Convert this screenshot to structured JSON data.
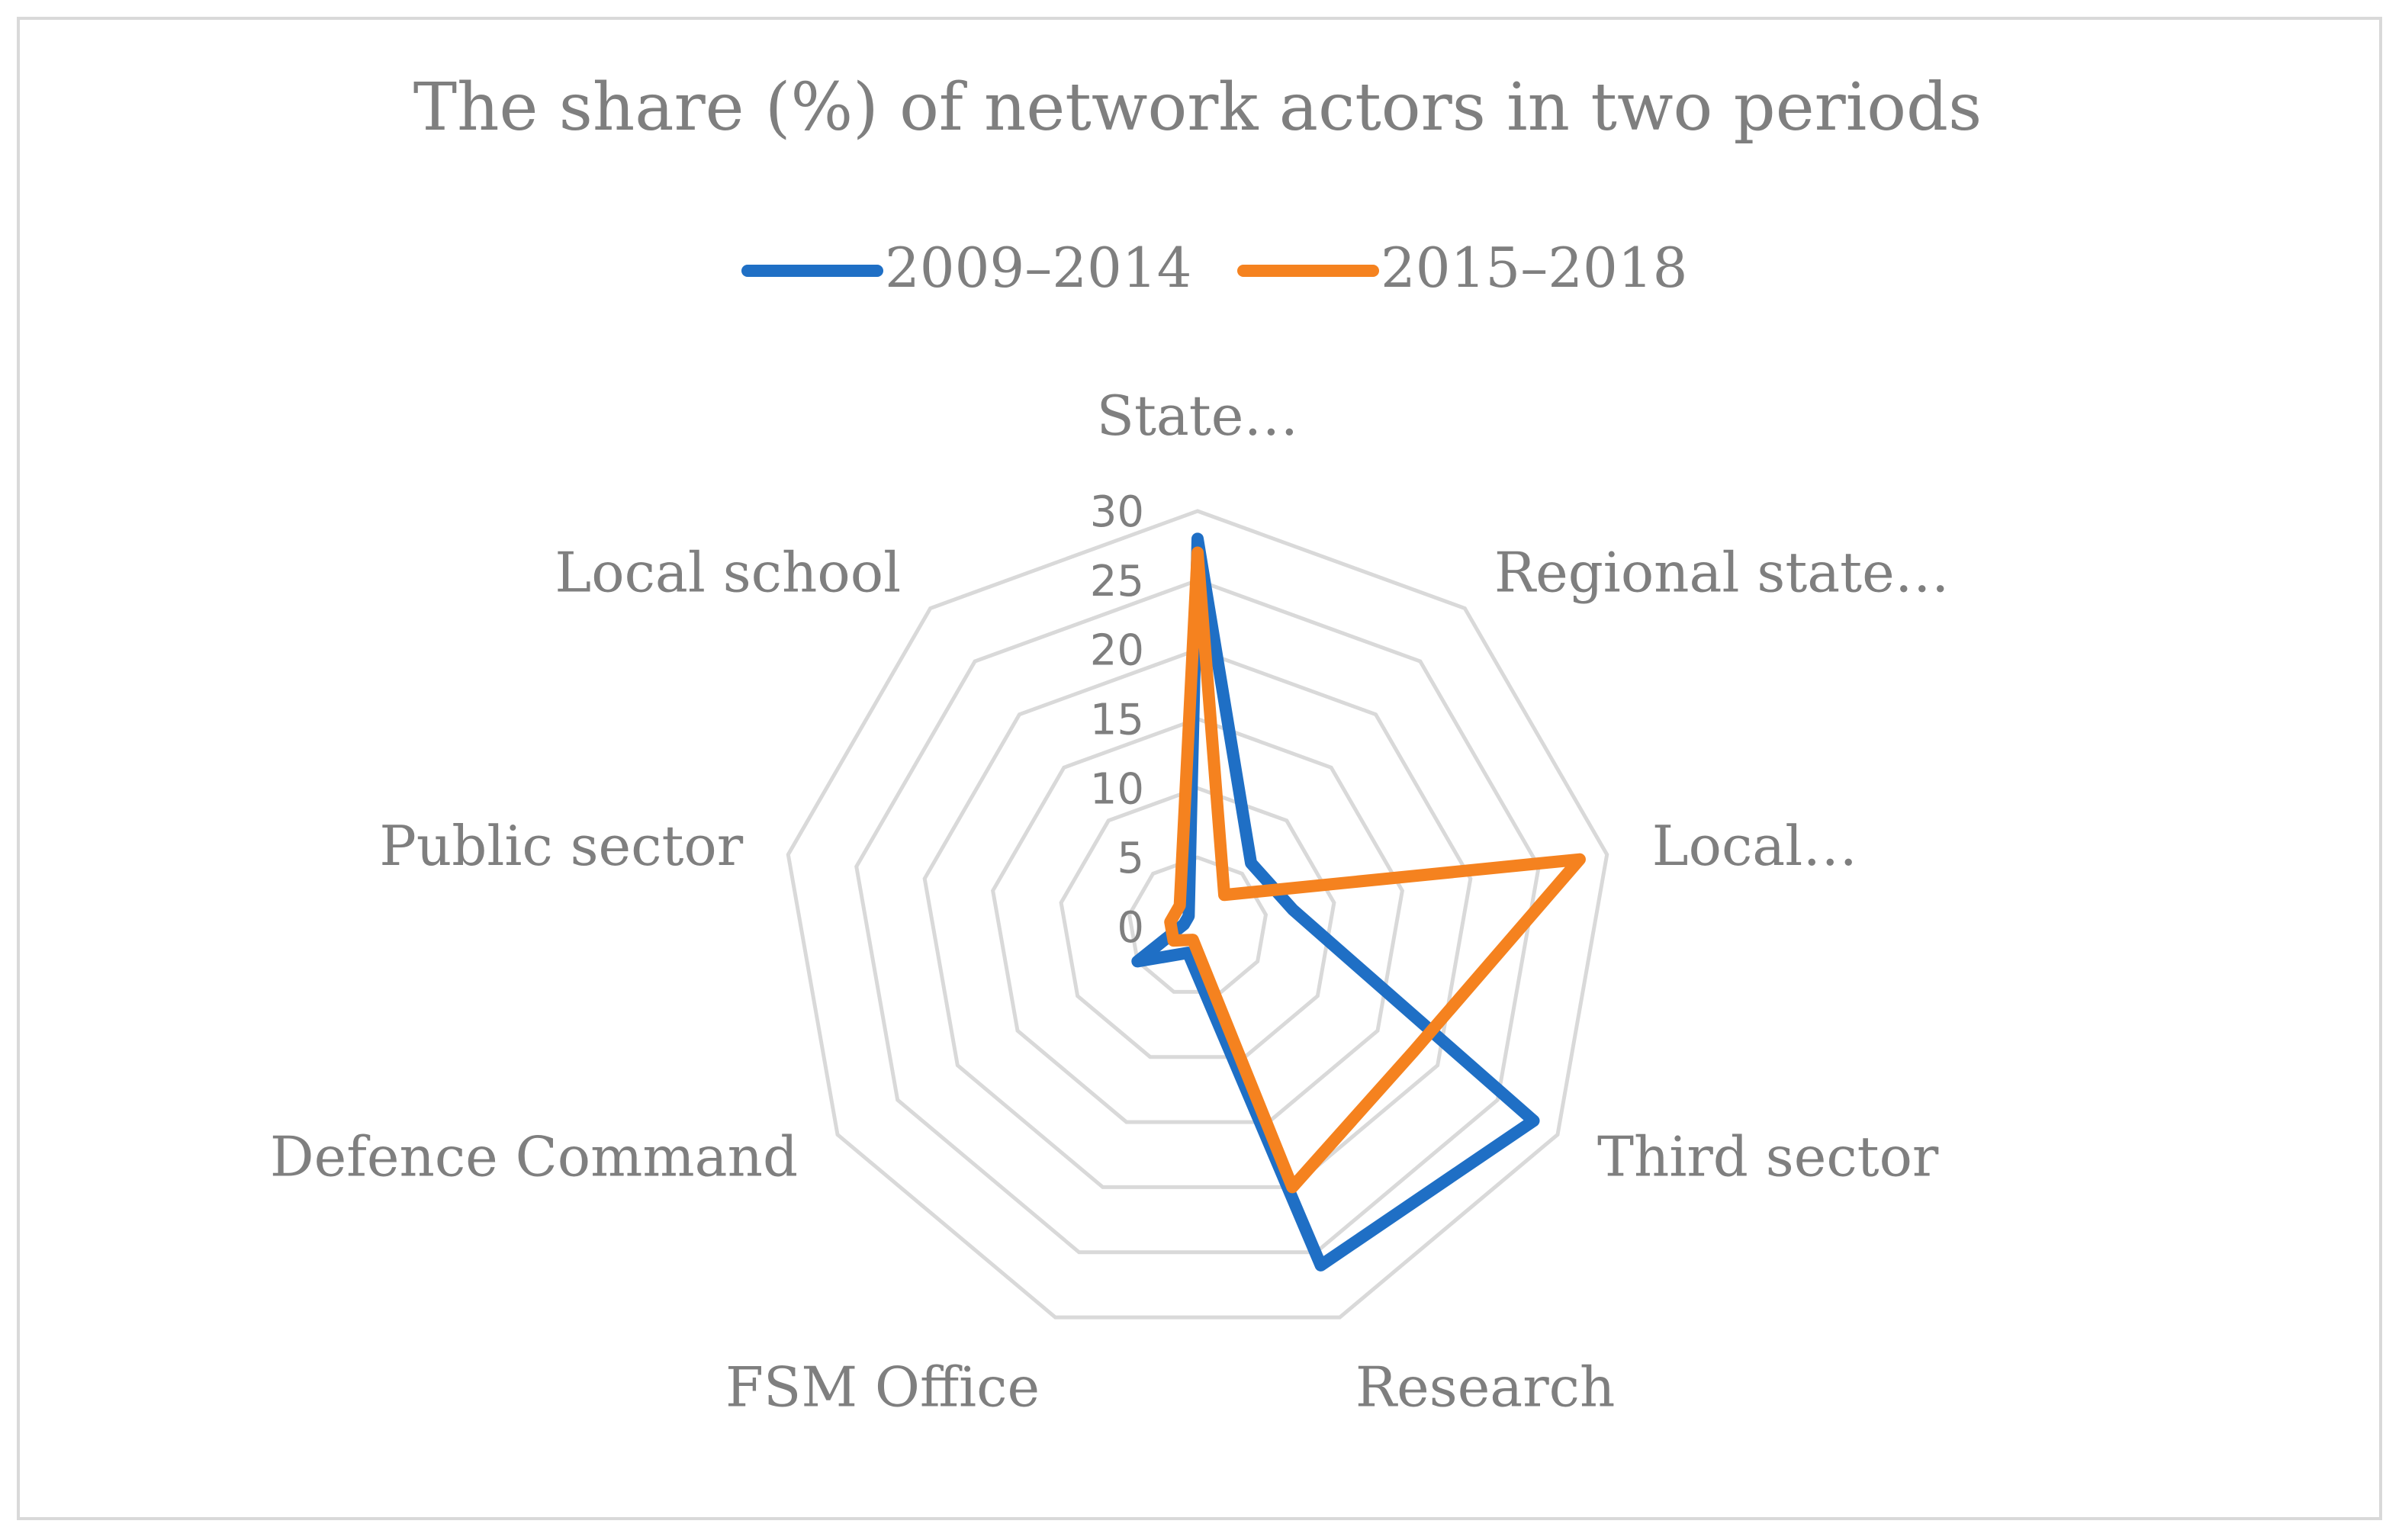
{
  "chart_data": {
    "type": "radar",
    "title": "The share (%) of network actors in two periods",
    "categories": [
      "State…",
      "Regional state…",
      "Local…",
      "Third sector",
      "Research",
      "FSM Office",
      "Defence Command",
      "Public sector",
      "Local school"
    ],
    "radial_ticks": [
      "0",
      "5",
      "10",
      "15",
      "20",
      "25",
      "30"
    ],
    "rlim": [
      0,
      30
    ],
    "grid": true,
    "legend_position": "top",
    "series": [
      {
        "name": "2009–2014",
        "color": "#1f6fc5",
        "values": [
          28,
          6,
          7,
          28,
          26,
          2,
          5,
          1,
          1
        ]
      },
      {
        "name": "2015–2018",
        "color": "#f5821f",
        "values": [
          27,
          3,
          28,
          18,
          20,
          1,
          2,
          2,
          2
        ]
      }
    ]
  },
  "colors": {
    "grid": "#d9d9d9",
    "text": "#7f7f7f",
    "border": "#d9d9d9"
  }
}
